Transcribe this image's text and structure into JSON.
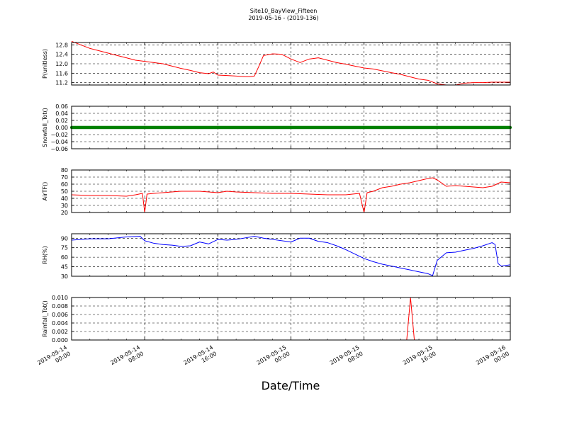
{
  "figure": {
    "title": "Site10_BayView_Fifteen",
    "subtitle": "2019-05-16 - (2019-136)",
    "xlabel": "Date/Time"
  },
  "chart_data": [
    {
      "type": "line",
      "ylabel": "P(unitless)",
      "color": "#ff0000",
      "grid": true,
      "xlim": [
        "2019-05-14 00:00",
        "2019-05-16 00:00"
      ],
      "x_ticks": [
        "2019-05-14 00:00",
        "2019-05-14 08:00",
        "2019-05-14 16:00",
        "2019-05-15 00:00",
        "2019-05-15 08:00",
        "2019-05-15 16:00",
        "2019-05-16 00:00"
      ],
      "ylim": [
        11.1,
        12.9
      ],
      "y_ticks": [
        11.2,
        11.6,
        12.0,
        12.4,
        12.8
      ],
      "y_tick_labels": [
        "11.2",
        "11.6",
        "12.0",
        "12.4",
        "12.8"
      ],
      "series": [
        {
          "x": [
            "2019-05-14 00:00",
            "2019-05-14 01:00",
            "2019-05-14 02:00",
            "2019-05-14 03:00",
            "2019-05-14 04:00",
            "2019-05-14 05:00",
            "2019-05-14 06:00",
            "2019-05-14 07:00",
            "2019-05-14 08:00",
            "2019-05-14 09:00",
            "2019-05-14 10:00",
            "2019-05-14 11:00",
            "2019-05-14 12:00",
            "2019-05-14 13:00",
            "2019-05-14 14:00",
            "2019-05-14 15:00",
            "2019-05-14 15:30",
            "2019-05-14 16:00",
            "2019-05-14 17:00",
            "2019-05-14 18:00",
            "2019-05-14 19:00",
            "2019-05-14 19:30",
            "2019-05-14 20:00",
            "2019-05-14 20:30",
            "2019-05-14 21:00",
            "2019-05-14 22:00",
            "2019-05-14 23:00",
            "2019-05-15 00:00",
            "2019-05-15 01:00",
            "2019-05-15 02:00",
            "2019-05-15 03:00",
            "2019-05-15 04:00",
            "2019-05-15 05:00",
            "2019-05-15 06:00",
            "2019-05-15 07:00",
            "2019-05-15 08:00",
            "2019-05-15 09:00",
            "2019-05-15 10:00",
            "2019-05-15 11:00",
            "2019-05-15 12:00",
            "2019-05-15 13:00",
            "2019-05-15 14:00",
            "2019-05-15 15:00",
            "2019-05-15 16:00",
            "2019-05-15 17:00",
            "2019-05-15 18:00",
            "2019-05-15 19:00",
            "2019-05-15 20:00",
            "2019-05-15 21:00",
            "2019-05-15 22:00",
            "2019-05-15 23:00",
            "2019-05-16 00:00"
          ],
          "y": [
            12.95,
            12.8,
            12.65,
            12.55,
            12.45,
            12.35,
            12.25,
            12.15,
            12.1,
            12.05,
            12.0,
            11.9,
            11.8,
            11.72,
            11.62,
            11.58,
            11.65,
            11.52,
            11.5,
            11.48,
            11.45,
            11.45,
            11.48,
            11.9,
            12.35,
            12.42,
            12.4,
            12.2,
            12.05,
            12.2,
            12.25,
            12.15,
            12.05,
            11.98,
            11.9,
            11.82,
            11.78,
            11.7,
            11.62,
            11.55,
            11.45,
            11.35,
            11.3,
            11.15,
            11.1,
            11.1,
            11.18,
            11.2,
            11.2,
            11.22,
            11.22,
            11.22
          ]
        }
      ]
    },
    {
      "type": "scatter",
      "ylabel": "Snowfall_Tot()",
      "color": "#008000",
      "grid": true,
      "xlim": [
        "2019-05-14 00:00",
        "2019-05-16 00:00"
      ],
      "ylim": [
        -0.06,
        0.06
      ],
      "y_ticks": [
        -0.06,
        -0.04,
        -0.02,
        0.0,
        0.02,
        0.04,
        0.06
      ],
      "y_tick_labels": [
        "−0.06",
        "−0.04",
        "−0.02",
        "0.00",
        "0.02",
        "0.04",
        "0.06"
      ],
      "series": [
        {
          "x": [
            "2019-05-14 00:00",
            "2019-05-16 00:00"
          ],
          "y": [
            0.0,
            0.0
          ],
          "sampling": "every 5 minutes"
        }
      ]
    },
    {
      "type": "line",
      "ylabel": "AirTF()",
      "color": "#ff0000",
      "grid": true,
      "xlim": [
        "2019-05-14 00:00",
        "2019-05-16 00:00"
      ],
      "ylim": [
        20,
        80
      ],
      "y_ticks": [
        20,
        30,
        40,
        50,
        60,
        70,
        80
      ],
      "y_tick_labels": [
        "20",
        "30",
        "40",
        "50",
        "60",
        "70",
        "80"
      ],
      "series": [
        {
          "x": [
            "2019-05-14 00:00",
            "2019-05-14 02:00",
            "2019-05-14 04:00",
            "2019-05-14 06:00",
            "2019-05-14 07:00",
            "2019-05-14 07:45",
            "2019-05-14 08:00",
            "2019-05-14 08:15",
            "2019-05-14 09:00",
            "2019-05-14 10:00",
            "2019-05-14 12:00",
            "2019-05-14 14:00",
            "2019-05-14 15:00",
            "2019-05-14 16:00",
            "2019-05-14 17:00",
            "2019-05-14 18:00",
            "2019-05-14 20:00",
            "2019-05-14 22:00",
            "2019-05-15 00:00",
            "2019-05-15 02:00",
            "2019-05-15 04:00",
            "2019-05-15 06:00",
            "2019-05-15 07:30",
            "2019-05-15 08:00",
            "2019-05-15 08:20",
            "2019-05-15 09:00",
            "2019-05-15 10:00",
            "2019-05-15 11:00",
            "2019-05-15 12:00",
            "2019-05-15 13:00",
            "2019-05-15 14:00",
            "2019-05-15 15:00",
            "2019-05-15 15:30",
            "2019-05-15 16:00",
            "2019-05-15 17:00",
            "2019-05-15 18:00",
            "2019-05-15 19:00",
            "2019-05-15 20:00",
            "2019-05-15 21:00",
            "2019-05-15 22:00",
            "2019-05-15 23:00",
            "2019-05-16 00:00"
          ],
          "y": [
            45,
            44,
            44,
            43,
            45,
            47,
            20,
            46,
            47,
            48,
            50,
            50,
            49,
            48,
            50,
            49,
            48,
            47,
            47,
            46,
            45,
            45,
            47,
            20,
            48,
            50,
            55,
            57,
            60,
            62,
            65,
            68,
            69,
            66,
            57,
            58,
            57,
            56,
            55,
            57,
            63,
            62
          ]
        }
      ]
    },
    {
      "type": "line",
      "ylabel": "RH(%)",
      "color": "#0000ff",
      "grid": true,
      "xlim": [
        "2019-05-14 00:00",
        "2019-05-16 00:00"
      ],
      "ylim": [
        30,
        97
      ],
      "y_ticks": [
        30,
        45,
        60,
        75,
        90
      ],
      "y_tick_labels": [
        "30",
        "45",
        "60",
        "75",
        "90"
      ],
      "series": [
        {
          "x": [
            "2019-05-14 00:00",
            "2019-05-14 02:00",
            "2019-05-14 04:00",
            "2019-05-14 06:00",
            "2019-05-14 07:30",
            "2019-05-14 08:00",
            "2019-05-14 09:00",
            "2019-05-14 10:00",
            "2019-05-14 11:00",
            "2019-05-14 12:00",
            "2019-05-14 13:00",
            "2019-05-14 14:00",
            "2019-05-14 15:00",
            "2019-05-14 16:00",
            "2019-05-14 17:00",
            "2019-05-14 18:00",
            "2019-05-14 20:00",
            "2019-05-14 21:00",
            "2019-05-14 22:00",
            "2019-05-15 00:00",
            "2019-05-15 01:00",
            "2019-05-15 02:00",
            "2019-05-15 03:00",
            "2019-05-15 04:00",
            "2019-05-15 05:00",
            "2019-05-15 06:00",
            "2019-05-15 07:00",
            "2019-05-15 08:00",
            "2019-05-15 09:00",
            "2019-05-15 10:00",
            "2019-05-15 11:00",
            "2019-05-15 12:00",
            "2019-05-15 13:00",
            "2019-05-15 14:00",
            "2019-05-15 15:00",
            "2019-05-15 15:30",
            "2019-05-15 16:00",
            "2019-05-15 17:00",
            "2019-05-15 18:00",
            "2019-05-15 19:00",
            "2019-05-15 20:00",
            "2019-05-15 21:00",
            "2019-05-15 22:00",
            "2019-05-15 22:20",
            "2019-05-15 22:40",
            "2019-05-15 23:00",
            "2019-05-16 00:00"
          ],
          "y": [
            87,
            89,
            89,
            92,
            93,
            86,
            82,
            80,
            79,
            77,
            78,
            84,
            81,
            88,
            87,
            88,
            93,
            90,
            88,
            84,
            90,
            90,
            85,
            83,
            78,
            72,
            65,
            58,
            53,
            49,
            46,
            43,
            40,
            37,
            34,
            31,
            55,
            67,
            68,
            71,
            74,
            78,
            83,
            80,
            50,
            46,
            48
          ]
        }
      ]
    },
    {
      "type": "line",
      "ylabel": "Rainfall_Tot()",
      "color": "#ff0000",
      "grid": true,
      "xlim": [
        "2019-05-14 00:00",
        "2019-05-16 00:00"
      ],
      "ylim": [
        0,
        0.01
      ],
      "y_ticks": [
        0,
        0.002,
        0.004,
        0.006,
        0.008,
        0.01
      ],
      "y_tick_labels": [
        "0.000",
        "0.002",
        "0.004",
        "0.006",
        "0.008",
        "0.010"
      ],
      "series": [
        {
          "x": [
            "2019-05-14 00:00",
            "2019-05-15 12:40",
            "2019-05-15 13:05",
            "2019-05-15 13:30",
            "2019-05-16 00:00"
          ],
          "y": [
            0,
            0,
            0.01,
            0,
            0
          ]
        }
      ]
    }
  ]
}
